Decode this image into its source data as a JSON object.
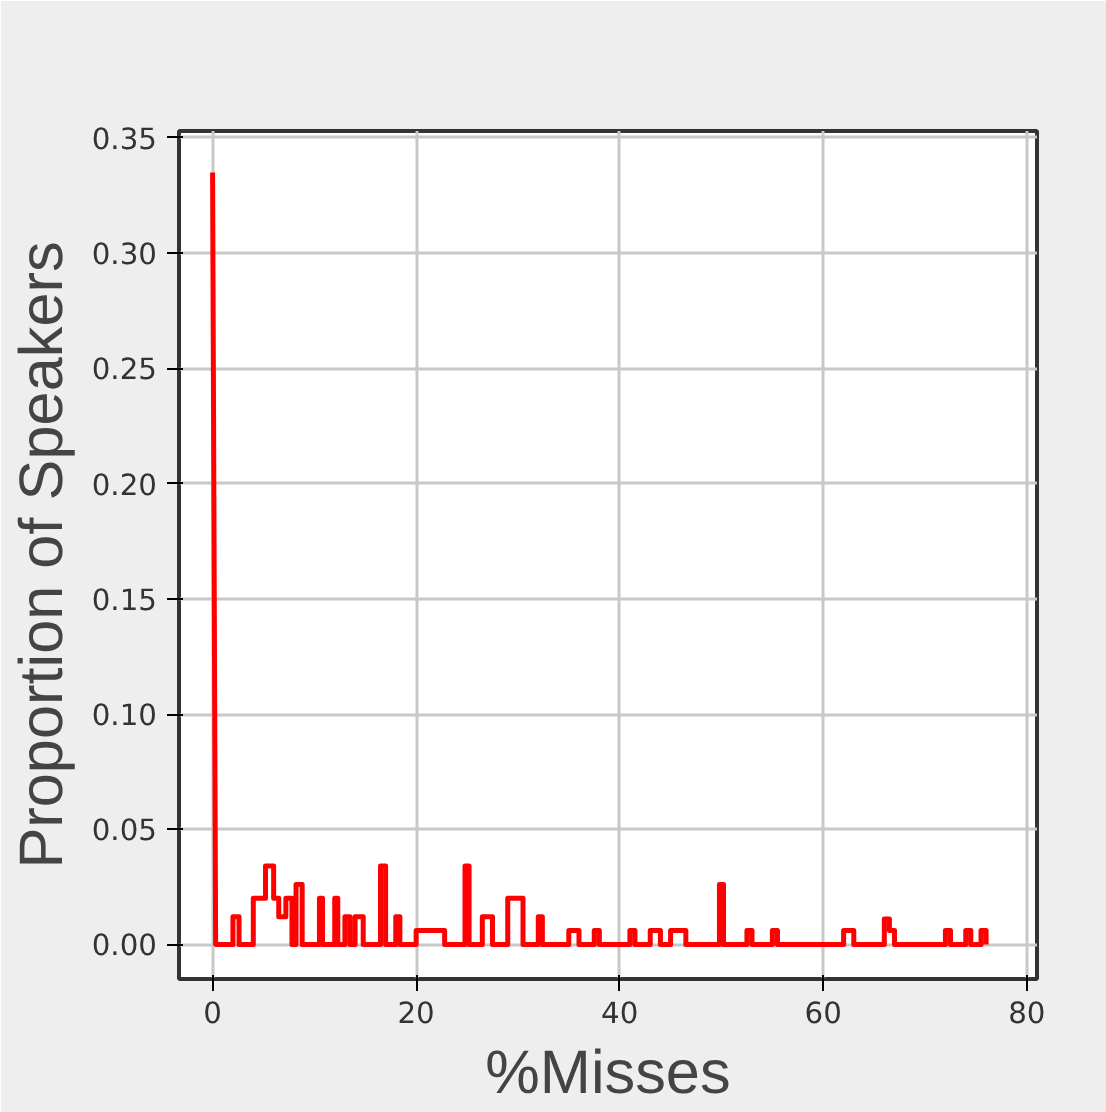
{
  "chart_data": {
    "type": "line",
    "xlabel": "%Misses",
    "ylabel": "Proportion of Speakers",
    "x": [
      0,
      0.3,
      2,
      2,
      2.6,
      2.6,
      4,
      4,
      5.2,
      5.2,
      6,
      6,
      6.5,
      6.5,
      7.2,
      7.2,
      7.8,
      7.8,
      8.2,
      8.2,
      8.8,
      8.8,
      10.5,
      10.5,
      10.8,
      10.8,
      12,
      12,
      12.3,
      12.3,
      13,
      13,
      13.5,
      13.5,
      14,
      14,
      14.8,
      14.8,
      16.5,
      16.5,
      17,
      17,
      18,
      18,
      18.4,
      18.4,
      20,
      20,
      22.8,
      22.8,
      24.8,
      24.8,
      25.2,
      25.2,
      26.5,
      26.5,
      27.5,
      27.5,
      29,
      29,
      30.5,
      30.5,
      32,
      32,
      32.4,
      32.4,
      35,
      35,
      36,
      36,
      37.5,
      37.5,
      38,
      38,
      41,
      41,
      41.5,
      41.5,
      43,
      43,
      44,
      44,
      45,
      45,
      46.5,
      46.5,
      49.8,
      49.8,
      50.2,
      50.2,
      52.5,
      52.5,
      53,
      53,
      55,
      55,
      55.5,
      55.5,
      62,
      62,
      63,
      63,
      66,
      66,
      66.5,
      66.5,
      67,
      67,
      72,
      72,
      72.5,
      72.5,
      74,
      74,
      74.5,
      74.5,
      75.5,
      75.5,
      76,
      76
    ],
    "series": [
      {
        "color": "#ff0000",
        "values": [
          0.335,
          0,
          0,
          0.012,
          0.012,
          0,
          0,
          0.02,
          0.02,
          0.034,
          0.034,
          0.02,
          0.02,
          0.012,
          0.012,
          0.02,
          0.02,
          0,
          0,
          0.026,
          0.026,
          0,
          0,
          0.02,
          0.02,
          0,
          0,
          0.02,
          0.02,
          0,
          0,
          0.012,
          0.012,
          0,
          0,
          0.012,
          0.012,
          0,
          0,
          0.034,
          0.034,
          0,
          0,
          0.012,
          0.012,
          0,
          0,
          0.006,
          0.006,
          0,
          0,
          0.034,
          0.034,
          0,
          0,
          0.012,
          0.012,
          0,
          0,
          0.02,
          0.02,
          0,
          0,
          0.012,
          0.012,
          0,
          0,
          0.006,
          0.006,
          0,
          0,
          0.006,
          0.006,
          0,
          0,
          0.006,
          0.006,
          0,
          0,
          0.006,
          0.006,
          0,
          0,
          0.006,
          0.006,
          0,
          0,
          0.026,
          0.026,
          0,
          0,
          0.006,
          0.006,
          0,
          0,
          0.006,
          0.006,
          0,
          0,
          0.006,
          0.006,
          0,
          0,
          0.011,
          0.011,
          0.006,
          0.006,
          0,
          0,
          0.006,
          0.006,
          0,
          0,
          0.006,
          0.006,
          0,
          0,
          0.006,
          0.006,
          0
        ]
      }
    ],
    "xlim": [
      -3.3,
      81
    ],
    "ylim": [
      -0.015,
      0.353
    ],
    "xticks": [
      0,
      20,
      40,
      60,
      80
    ],
    "yticks": [
      {
        "value": 0,
        "label": "0.00"
      },
      {
        "value": 0.05,
        "label": "0.05"
      },
      {
        "value": 0.1,
        "label": "0.10"
      },
      {
        "value": 0.15,
        "label": "0.15"
      },
      {
        "value": 0.2,
        "label": "0.20"
      },
      {
        "value": 0.25,
        "label": "0.25"
      },
      {
        "value": 0.3,
        "label": "0.30"
      },
      {
        "value": 0.35,
        "label": "0.35"
      }
    ],
    "grid": true,
    "marker": "none",
    "line_style": "solid"
  }
}
